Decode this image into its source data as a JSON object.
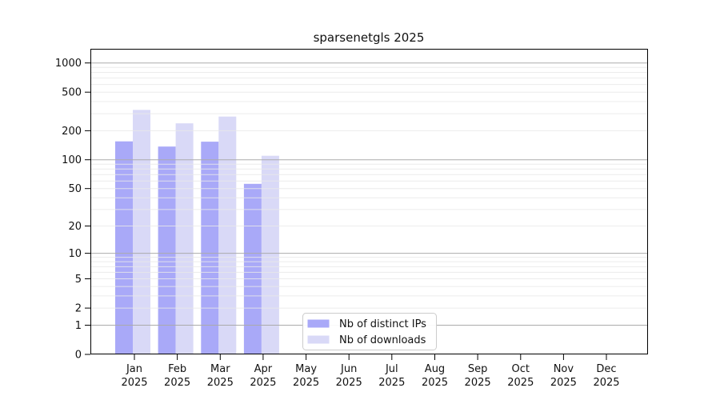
{
  "title": "sparsenetgls 2025",
  "legend": {
    "items": [
      {
        "label": "Nb of distinct IPs",
        "color": "#a9a9f8"
      },
      {
        "label": "Nb of downloads",
        "color": "#d9d9f7"
      }
    ]
  },
  "colors": {
    "distinct_ips_bar": "#a9a9f8",
    "downloads_bar": "#d9d9f7",
    "major_gridline": "#ababab",
    "minor_gridline": "#e9e9e9",
    "axis": "#000000"
  },
  "chart_data": {
    "type": "bar",
    "title": "sparsenetgls 2025",
    "categories": [
      "Jan 2025",
      "Feb 2025",
      "Mar 2025",
      "Apr 2025",
      "May 2025",
      "Jun 2025",
      "Jul 2025",
      "Aug 2025",
      "Sep 2025",
      "Oct 2025",
      "Nov 2025",
      "Dec 2025"
    ],
    "series": [
      {
        "name": "Nb of distinct IPs",
        "color": "#a9a9f8",
        "values": [
          155,
          137,
          154,
          56,
          null,
          null,
          null,
          null,
          null,
          null,
          null,
          null
        ]
      },
      {
        "name": "Nb of downloads",
        "color": "#d9d9f7",
        "values": [
          328,
          238,
          280,
          110,
          null,
          null,
          null,
          null,
          null,
          null,
          null,
          null
        ]
      }
    ],
    "xlabel": "",
    "ylabel": "",
    "yscale": "log10(value+1)",
    "yticks": [
      0,
      1,
      2,
      5,
      10,
      20,
      50,
      100,
      200,
      500,
      1000
    ],
    "minor_gridline_values": [
      2,
      3,
      4,
      5,
      6,
      7,
      8,
      9,
      20,
      30,
      40,
      50,
      60,
      70,
      80,
      90,
      200,
      300,
      400,
      500,
      600,
      700,
      800,
      900
    ],
    "major_gridline_values": [
      1,
      10,
      100,
      1000
    ],
    "ylim": [
      0,
      1400
    ],
    "grid": "on",
    "legend_position": "lower center"
  }
}
